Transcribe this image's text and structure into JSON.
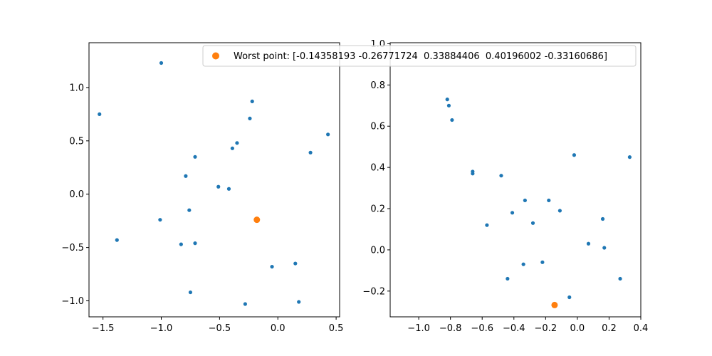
{
  "chart_data": [
    {
      "type": "scatter",
      "xlim": [
        -1.62,
        0.53
      ],
      "ylim": [
        -1.15,
        1.42
      ],
      "xticks": [
        -1.5,
        -1.0,
        -0.5,
        0.0,
        0.5
      ],
      "xtick_labels": [
        "−1.5",
        "−1.0",
        "−0.5",
        "0.0",
        "0.5"
      ],
      "yticks": [
        -1.0,
        -0.5,
        0.0,
        0.5,
        1.0
      ],
      "ytick_labels": [
        "−1.0",
        "−0.5",
        "0.0",
        "0.5",
        "1.0"
      ],
      "grid": false,
      "series": [
        {
          "color": "#1f77b4",
          "marker_size": "small",
          "points": [
            [
              -1.0,
              1.23
            ],
            [
              -1.53,
              0.75
            ],
            [
              -0.22,
              0.87
            ],
            [
              -0.24,
              0.71
            ],
            [
              0.43,
              0.56
            ],
            [
              -0.35,
              0.48
            ],
            [
              -0.39,
              0.43
            ],
            [
              0.28,
              0.39
            ],
            [
              -0.71,
              0.35
            ],
            [
              -0.79,
              0.17
            ],
            [
              -0.51,
              0.07
            ],
            [
              -0.42,
              0.05
            ],
            [
              -0.76,
              -0.15
            ],
            [
              -1.01,
              -0.24
            ],
            [
              -1.38,
              -0.43
            ],
            [
              -0.83,
              -0.47
            ],
            [
              -0.71,
              -0.46
            ],
            [
              -0.05,
              -0.68
            ],
            [
              0.15,
              -0.65
            ],
            [
              -0.75,
              -0.92
            ],
            [
              -0.28,
              -1.03
            ],
            [
              0.18,
              -1.01
            ]
          ]
        },
        {
          "color": "#ff7f0e",
          "marker_size": "large",
          "points": [
            [
              -0.18,
              -0.24
            ]
          ]
        }
      ]
    },
    {
      "type": "scatter",
      "xlim": [
        -1.18,
        0.4
      ],
      "ylim": [
        -0.325,
        1.005
      ],
      "xticks": [
        -1.0,
        -0.8,
        -0.6,
        -0.4,
        -0.2,
        0.0,
        0.2,
        0.4
      ],
      "xtick_labels": [
        "−1.0",
        "−0.8",
        "−0.6",
        "−0.4",
        "−0.2",
        "0.0",
        "0.2",
        "0.4"
      ],
      "yticks": [
        -0.2,
        0.0,
        0.2,
        0.4,
        0.6,
        0.8,
        1.0
      ],
      "ytick_labels": [
        "−0.2",
        "0.0",
        "0.2",
        "0.4",
        "0.6",
        "0.8",
        "1.0"
      ],
      "grid": false,
      "series": [
        {
          "color": "#1f77b4",
          "marker_size": "small",
          "points": [
            [
              -0.82,
              0.73
            ],
            [
              -0.81,
              0.7
            ],
            [
              -0.79,
              0.63
            ],
            [
              -0.66,
              0.38
            ],
            [
              -0.66,
              0.37
            ],
            [
              -0.48,
              0.36
            ],
            [
              -0.02,
              0.46
            ],
            [
              0.33,
              0.45
            ],
            [
              -0.33,
              0.24
            ],
            [
              -0.18,
              0.24
            ],
            [
              -0.11,
              0.19
            ],
            [
              -0.41,
              0.18
            ],
            [
              -0.28,
              0.13
            ],
            [
              -0.57,
              0.12
            ],
            [
              0.16,
              0.15
            ],
            [
              0.07,
              0.03
            ],
            [
              0.17,
              0.01
            ],
            [
              -0.34,
              -0.07
            ],
            [
              -0.22,
              -0.06
            ],
            [
              -0.44,
              -0.14
            ],
            [
              -0.05,
              -0.23
            ],
            [
              0.27,
              -0.14
            ]
          ]
        },
        {
          "color": "#ff7f0e",
          "marker_size": "large",
          "points": [
            [
              -0.14358193,
              -0.26771724
            ]
          ]
        }
      ]
    }
  ],
  "legend": {
    "placement": "top-right",
    "marker_color": "#ff7f0e",
    "label": "Worst point: [-0.14358193 -0.26771724  0.33884406  0.40196002 -0.33160686]"
  }
}
